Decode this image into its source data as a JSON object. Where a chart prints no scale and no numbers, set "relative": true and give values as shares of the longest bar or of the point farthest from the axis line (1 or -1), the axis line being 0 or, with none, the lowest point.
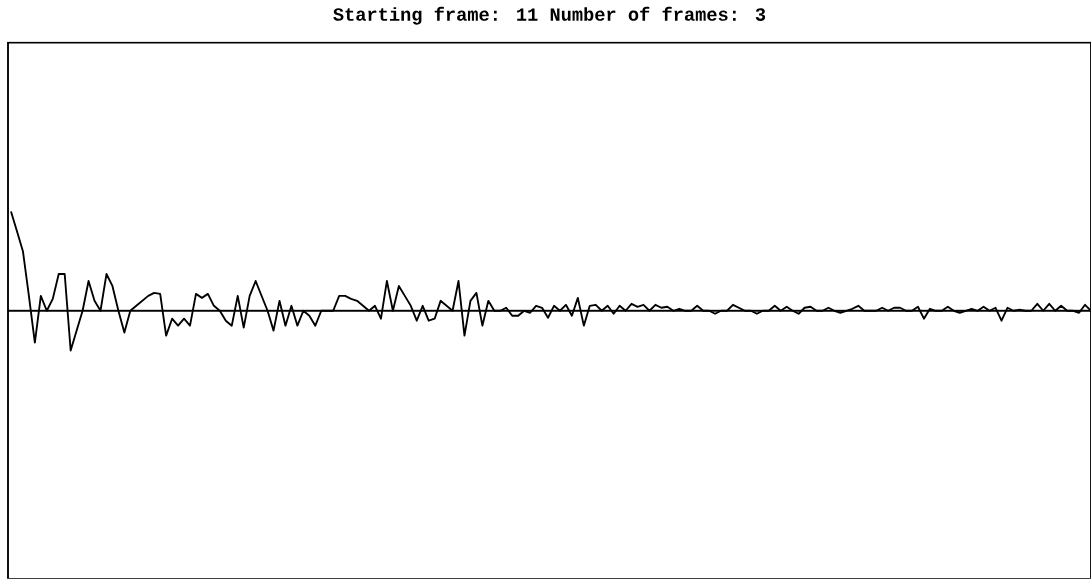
{
  "chart_data": {
    "type": "line",
    "title": "Starting frame: 11 Number of frames: 3",
    "relative": true,
    "categories": [
      null,
      null,
      null,
      null,
      null,
      null,
      null,
      null,
      null,
      null,
      null,
      null,
      null,
      null,
      null,
      null,
      null,
      null,
      null,
      null,
      null,
      null,
      null,
      null,
      null,
      null,
      null,
      null,
      null,
      null,
      null,
      null,
      null,
      null,
      null,
      null,
      null,
      null,
      null,
      null,
      null,
      null,
      null,
      null,
      null,
      null,
      null,
      null,
      null,
      null,
      null,
      null,
      null,
      null,
      null,
      null,
      null,
      null,
      null,
      null,
      null,
      null,
      null,
      null,
      null,
      null,
      null,
      null,
      null,
      null,
      null,
      null,
      null,
      null,
      null,
      null,
      null,
      null,
      null,
      null,
      null,
      null,
      null,
      null,
      null,
      null,
      null,
      null,
      null,
      null,
      null,
      null,
      null,
      null,
      null,
      null,
      null,
      null,
      null,
      null,
      null,
      null,
      null,
      null,
      null,
      null,
      null,
      null,
      null,
      null,
      null,
      null,
      null,
      null,
      null,
      null,
      null,
      null,
      null,
      null,
      null,
      null,
      null,
      null,
      null,
      null,
      null,
      null,
      null,
      null,
      null,
      null,
      null,
      null,
      null,
      null,
      null,
      null,
      null,
      null,
      null,
      null,
      null,
      null,
      null,
      null,
      null,
      null,
      null,
      null,
      null,
      null,
      null,
      null,
      null,
      null,
      null,
      null,
      null,
      null,
      null,
      null,
      null,
      null,
      null,
      null,
      null,
      null,
      null,
      null,
      null,
      null,
      null,
      null,
      null,
      null,
      null,
      null,
      null,
      null,
      null,
      null
    ],
    "series": [
      {
        "color": "#000000",
        "values": [
          1.0,
          0.8,
          0.6,
          0.15,
          -0.32,
          0.15,
          0.0,
          0.12,
          0.37,
          0.37,
          -0.4,
          -0.2,
          0.0,
          0.3,
          0.1,
          0.0,
          0.37,
          0.25,
          0.0,
          -0.22,
          0.0,
          0.05,
          0.1,
          0.15,
          0.18,
          0.17,
          -0.25,
          -0.08,
          -0.15,
          -0.08,
          -0.15,
          0.17,
          0.13,
          0.17,
          0.05,
          0.0,
          -0.1,
          -0.15,
          0.15,
          -0.17,
          0.15,
          0.3,
          0.15,
          0.0,
          -0.2,
          0.1,
          -0.15,
          0.05,
          -0.15,
          0.0,
          -0.05,
          -0.15,
          0.0,
          0.0,
          0.0,
          0.15,
          0.15,
          0.12,
          0.1,
          0.05,
          0.0,
          0.05,
          -0.08,
          0.3,
          0.0,
          0.25,
          0.15,
          0.05,
          -0.1,
          0.05,
          -0.1,
          -0.08,
          0.1,
          0.05,
          0.0,
          0.3,
          -0.25,
          0.1,
          0.18,
          -0.15,
          0.1,
          0.0,
          0.0,
          0.03,
          -0.05,
          -0.05,
          0.0,
          -0.02,
          0.05,
          0.03,
          -0.07,
          0.05,
          0.0,
          0.06,
          -0.05,
          0.13,
          -0.15,
          0.05,
          0.06,
          0.0,
          0.05,
          -0.03,
          0.05,
          0.0,
          0.07,
          0.04,
          0.06,
          0.0,
          0.06,
          0.03,
          0.04,
          0.0,
          0.02,
          0.0,
          0.0,
          0.05,
          0.0,
          0.0,
          -0.03,
          0.0,
          0.0,
          0.06,
          0.03,
          0.0,
          0.0,
          -0.03,
          0.0,
          0.0,
          0.05,
          0.0,
          0.04,
          0.0,
          -0.03,
          0.03,
          0.04,
          0.0,
          0.0,
          0.03,
          0.0,
          -0.02,
          0.0,
          0.02,
          0.05,
          0.0,
          0.0,
          0.0,
          0.03,
          0.0,
          0.03,
          0.03,
          0.0,
          0.0,
          0.04,
          -0.08,
          0.02,
          0.0,
          0.0,
          0.04,
          0.0,
          -0.02,
          0.0,
          0.02,
          0.0,
          0.04,
          0.0,
          0.03,
          -0.1,
          0.03,
          0.0,
          0.01,
          0.0,
          0.0,
          0.07,
          0.0,
          0.07,
          0.0,
          0.05,
          0.0,
          0.0,
          -0.02,
          0.06,
          0.0
        ]
      }
    ]
  }
}
